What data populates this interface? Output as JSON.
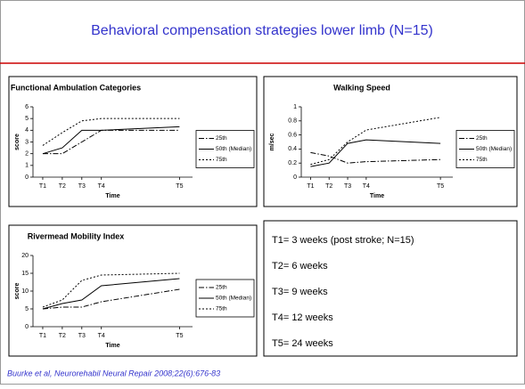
{
  "title": "Behavioral compensation strategies lower limb (N=15)",
  "notes": [
    "T1= 3 weeks (post stroke; N=15)",
    "T2= 6 weeks",
    "T3= 9 weeks",
    "T4= 12 weeks",
    "T5= 24 weeks"
  ],
  "citation": "Buurke et al, Neurorehabil Neural Repair 2008;22(6):676-83",
  "chart_data": [
    {
      "type": "line",
      "title": "Functional Ambulation Categories",
      "xlabel": "Time",
      "ylabel": "score",
      "x": [
        3,
        6,
        9,
        12,
        24
      ],
      "xlim": [
        1.5,
        26
      ],
      "xticks": [
        {
          "value": 3,
          "label": "T1"
        },
        {
          "value": 6,
          "label": "T2"
        },
        {
          "value": 9,
          "label": "T3"
        },
        {
          "value": 12,
          "label": "T4"
        },
        {
          "value": 24,
          "label": "T5"
        }
      ],
      "ylim": [
        0,
        6
      ],
      "yticks": [
        0,
        1,
        2,
        3,
        4,
        5,
        6
      ],
      "series": [
        {
          "name": "25th",
          "color": "#000000",
          "dash": "dashdot",
          "values": [
            2,
            2,
            3,
            4,
            4
          ]
        },
        {
          "name": "50th (Median)",
          "color": "#000000",
          "dash": "solid",
          "values": [
            2,
            2.5,
            4,
            4,
            4.3
          ]
        },
        {
          "name": "75th",
          "color": "#000000",
          "dash": "dot",
          "values": [
            2.7,
            3.8,
            4.8,
            5,
            5
          ]
        }
      ]
    },
    {
      "type": "line",
      "title": "Walking Speed",
      "xlabel": "Time",
      "ylabel": "m/sec",
      "x": [
        3,
        6,
        9,
        12,
        24
      ],
      "xlim": [
        1.5,
        26
      ],
      "xticks": [
        {
          "value": 3,
          "label": "T1"
        },
        {
          "value": 6,
          "label": "T2"
        },
        {
          "value": 9,
          "label": "T3"
        },
        {
          "value": 12,
          "label": "T4"
        },
        {
          "value": 24,
          "label": "T5"
        }
      ],
      "ylim": [
        0,
        1
      ],
      "yticks": [
        0,
        0.2,
        0.4,
        0.6,
        0.8,
        1
      ],
      "series": [
        {
          "name": "25th",
          "color": "#000000",
          "dash": "dashdot",
          "values": [
            0.35,
            0.3,
            0.2,
            0.22,
            0.25
          ]
        },
        {
          "name": "50th (Median)",
          "color": "#000000",
          "dash": "solid",
          "values": [
            0.15,
            0.2,
            0.48,
            0.53,
            0.48
          ]
        },
        {
          "name": "75th",
          "color": "#000000",
          "dash": "dot",
          "values": [
            0.18,
            0.25,
            0.5,
            0.67,
            0.85
          ]
        }
      ]
    },
    {
      "type": "line",
      "title": "Rivermead Mobility Index",
      "xlabel": "Time",
      "ylabel": "score",
      "x": [
        3,
        6,
        9,
        12,
        24
      ],
      "xlim": [
        1.5,
        26
      ],
      "xticks": [
        {
          "value": 3,
          "label": "T1"
        },
        {
          "value": 6,
          "label": "T2"
        },
        {
          "value": 9,
          "label": "T3"
        },
        {
          "value": 12,
          "label": "T4"
        },
        {
          "value": 24,
          "label": "T5"
        }
      ],
      "ylim": [
        0,
        20
      ],
      "yticks": [
        0,
        5,
        10,
        15,
        20
      ],
      "series": [
        {
          "name": "25th",
          "color": "#000000",
          "dash": "dashdot",
          "values": [
            5,
            5.5,
            5.5,
            7,
            10.5
          ]
        },
        {
          "name": "50th (Median)",
          "color": "#000000",
          "dash": "solid",
          "values": [
            5,
            6.5,
            7.5,
            11.5,
            13.5
          ]
        },
        {
          "name": "75th",
          "color": "#000000",
          "dash": "dot",
          "values": [
            5.5,
            7.5,
            13,
            14.5,
            15
          ]
        }
      ]
    }
  ]
}
